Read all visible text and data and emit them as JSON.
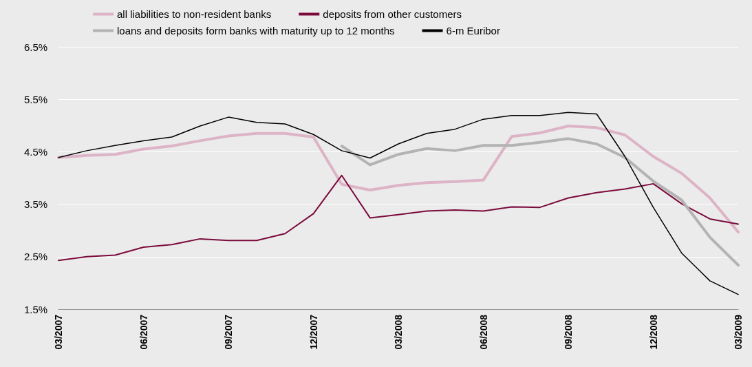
{
  "chart_data": {
    "type": "line",
    "categories": [
      "03/2007",
      null,
      null,
      "06/2007",
      null,
      null,
      "09/2007",
      null,
      null,
      "12/2007",
      null,
      null,
      "03/2008",
      null,
      null,
      "06/2008",
      null,
      null,
      "09/2008",
      null,
      null,
      "12/2008",
      null,
      null,
      "03/2009"
    ],
    "series": [
      {
        "name": "all liabilities to non-resident banks",
        "color": "#ddb3c6",
        "values": [
          4.39,
          4.43,
          4.45,
          4.55,
          4.61,
          4.71,
          4.8,
          4.85,
          4.85,
          4.78,
          3.88,
          3.77,
          3.86,
          3.91,
          3.93,
          3.96,
          4.79,
          4.86,
          4.99,
          4.96,
          4.82,
          4.41,
          4.09,
          3.62,
          2.97
        ]
      },
      {
        "name": "deposits from other customers",
        "color": "#7b0a3c",
        "values": [
          2.43,
          2.5,
          2.53,
          2.68,
          2.73,
          2.84,
          2.81,
          2.81,
          2.94,
          3.32,
          4.05,
          3.24,
          3.3,
          3.37,
          3.39,
          3.37,
          3.45,
          3.44,
          3.62,
          3.72,
          3.79,
          3.89,
          3.51,
          3.22,
          3.12
        ]
      },
      {
        "name": "loans and deposits form banks with maturity up to 12 months",
        "color": "#b3b3b3",
        "values": [
          null,
          null,
          null,
          null,
          null,
          null,
          null,
          null,
          null,
          null,
          4.61,
          4.25,
          4.45,
          4.56,
          4.52,
          4.62,
          4.62,
          4.68,
          4.75,
          4.65,
          4.39,
          3.94,
          3.58,
          2.87,
          2.34
        ]
      },
      {
        "name": "6-m Euribor",
        "color": "#000000",
        "values": [
          4.39,
          4.52,
          4.62,
          4.71,
          4.78,
          4.99,
          5.16,
          5.06,
          5.03,
          4.83,
          4.52,
          4.38,
          4.65,
          4.85,
          4.93,
          5.12,
          5.19,
          5.19,
          5.25,
          5.22,
          4.41,
          3.44,
          2.57,
          2.04,
          1.78
        ]
      }
    ],
    "ylim": [
      1.5,
      6.5
    ],
    "yticks": [
      {
        "value": 1.5,
        "label": "1.5%"
      },
      {
        "value": 2.5,
        "label": "2.5%"
      },
      {
        "value": 3.5,
        "label": "3.5%"
      },
      {
        "value": 4.5,
        "label": "4.5%"
      },
      {
        "value": 5.5,
        "label": "5.5%"
      },
      {
        "value": 6.5,
        "label": "6.5%"
      }
    ],
    "grid": "y",
    "legend": "top",
    "marker": "none",
    "line_style": "solid"
  }
}
